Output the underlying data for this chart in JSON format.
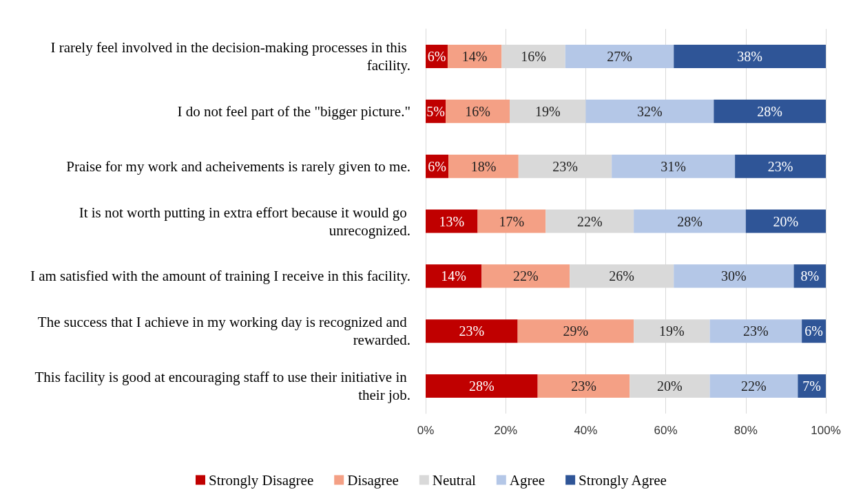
{
  "chart_data": {
    "type": "bar",
    "orientation": "horizontal",
    "stacked": true,
    "categories": [
      "I rarely feel involved in the decision-making processes in this facility.",
      "I do not feel part of the \"bigger picture.\"",
      "Praise for my work and acheivements is rarely given to me.",
      "It is not worth putting in extra effort because it would go unrecognized.",
      "I am satisfied with the amount of training I receive in this facility.",
      "The success that I achieve in my working day is recognized and rewarded.",
      "This facility is good at encouraging staff to use their initiative in their job."
    ],
    "series": [
      {
        "name": "Strongly Disagree",
        "color": "#c00000",
        "values": [
          5.5,
          5,
          5.7,
          13,
          14,
          23,
          28
        ],
        "value_labels": [
          "6%",
          "5%",
          "6%",
          "13%",
          "14%",
          "23%",
          "28%"
        ]
      },
      {
        "name": "Disagree",
        "color": "#f4a085",
        "values": [
          13.5,
          16,
          17.5,
          17,
          22,
          29,
          23
        ],
        "value_labels": [
          "14%",
          "16%",
          "18%",
          "17%",
          "22%",
          "29%",
          "23%"
        ]
      },
      {
        "name": "Neutral",
        "color": "#d9d9d9",
        "values": [
          15.9,
          19,
          23.3,
          22,
          26,
          19,
          20
        ],
        "value_labels": [
          "16%",
          "19%",
          "23%",
          "22%",
          "26%",
          "19%",
          "20%"
        ]
      },
      {
        "name": "Agree",
        "color": "#b4c7e7",
        "values": [
          27.1,
          32,
          30.8,
          28,
          30,
          23,
          22
        ],
        "value_labels": [
          "27%",
          "32%",
          "31%",
          "28%",
          "30%",
          "23%",
          "22%"
        ]
      },
      {
        "name": "Strongly Agree",
        "color": "#2f5597",
        "values": [
          38,
          28,
          22.7,
          20,
          8,
          6,
          7
        ],
        "value_labels": [
          "38%",
          "28%",
          "23%",
          "20%",
          "8%",
          "6%",
          "7%"
        ]
      }
    ],
    "xlim": [
      0,
      100
    ],
    "xticks": [
      {
        "value": 0,
        "label": "0%"
      },
      {
        "value": 20,
        "label": "20%"
      },
      {
        "value": 40,
        "label": "40%"
      },
      {
        "value": 60,
        "label": "60%"
      },
      {
        "value": 80,
        "label": "80%"
      },
      {
        "value": 100,
        "label": "100%"
      }
    ],
    "grid": "x",
    "legend": "bottom"
  }
}
